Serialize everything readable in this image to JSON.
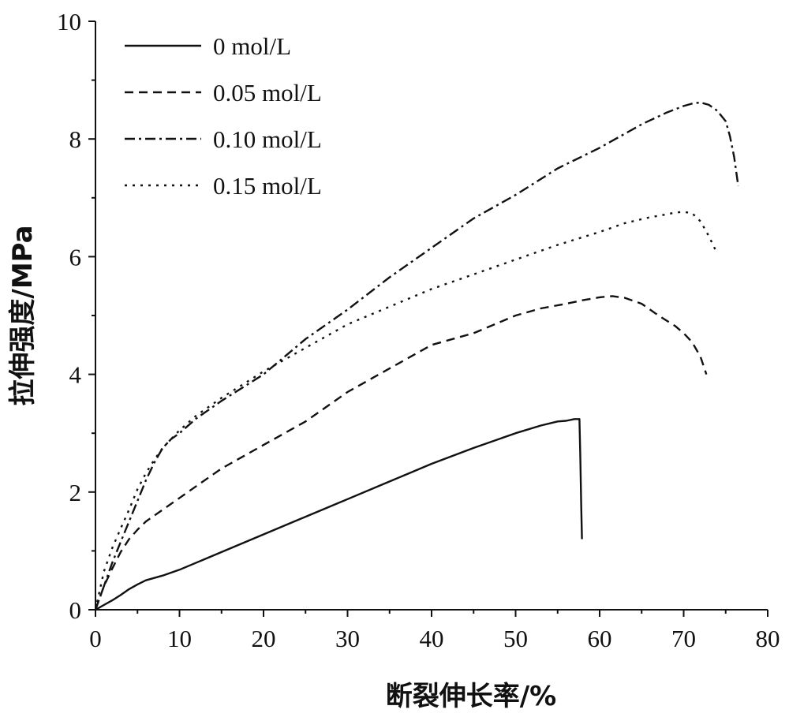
{
  "chart_data": {
    "type": "line",
    "title": "",
    "xlabel": "断裂伸长率/%",
    "ylabel": "拉伸强度/MPa",
    "xlim": [
      0,
      80
    ],
    "ylim": [
      0,
      10
    ],
    "xticks": [
      0,
      10,
      20,
      30,
      40,
      50,
      60,
      70,
      80
    ],
    "yticks": [
      0,
      2,
      4,
      6,
      8,
      10
    ],
    "grid": false,
    "legend_position": "top-left",
    "series": [
      {
        "name": "0 mol/L",
        "style": "solid",
        "x": [
          0,
          1,
          2,
          3,
          4,
          5,
          6,
          8,
          10,
          15,
          20,
          25,
          30,
          35,
          40,
          45,
          50,
          53,
          55,
          56,
          57,
          57.6,
          57.7,
          57.8,
          57.9
        ],
        "y": [
          0,
          0.08,
          0.16,
          0.25,
          0.35,
          0.43,
          0.5,
          0.58,
          0.68,
          0.98,
          1.28,
          1.58,
          1.88,
          2.18,
          2.48,
          2.75,
          3.0,
          3.13,
          3.2,
          3.21,
          3.24,
          3.24,
          2.6,
          1.8,
          1.2
        ]
      },
      {
        "name": "0.05 mol/L",
        "style": "dashed",
        "x": [
          0,
          1,
          2,
          3,
          4,
          5,
          6,
          8,
          10,
          12,
          15,
          20,
          25,
          30,
          35,
          40,
          43,
          45,
          50,
          53,
          56,
          58,
          60,
          61.5,
          63,
          65,
          67,
          69,
          70,
          71,
          72,
          72.7
        ],
        "y": [
          0,
          0.4,
          0.7,
          0.98,
          1.2,
          1.36,
          1.5,
          1.7,
          1.9,
          2.1,
          2.4,
          2.8,
          3.2,
          3.7,
          4.1,
          4.5,
          4.62,
          4.7,
          5.0,
          5.12,
          5.2,
          5.26,
          5.31,
          5.33,
          5.3,
          5.2,
          5.0,
          4.82,
          4.7,
          4.55,
          4.3,
          4.0
        ]
      },
      {
        "name": "0.10 mol/L",
        "style": "dashdot",
        "x": [
          0,
          1,
          2,
          3,
          4,
          5,
          6,
          7,
          8,
          9,
          10,
          12,
          15,
          20,
          25,
          30,
          35,
          40,
          45,
          50,
          55,
          60,
          65,
          68,
          70,
          71,
          72,
          73,
          74,
          75,
          75.5,
          76,
          76.5
        ],
        "y": [
          0,
          0.4,
          0.8,
          1.15,
          1.5,
          1.85,
          2.2,
          2.5,
          2.75,
          2.9,
          3.0,
          3.25,
          3.55,
          4.0,
          4.6,
          5.1,
          5.65,
          6.15,
          6.65,
          7.05,
          7.5,
          7.85,
          8.25,
          8.45,
          8.56,
          8.6,
          8.62,
          8.58,
          8.48,
          8.3,
          8.05,
          7.7,
          7.2
        ]
      },
      {
        "name": "0.15 mol/L",
        "style": "dotted",
        "x": [
          0,
          1,
          2,
          3,
          4,
          5,
          6,
          7,
          8,
          10,
          12,
          15,
          20,
          25,
          30,
          35,
          40,
          45,
          50,
          55,
          60,
          63,
          66,
          68,
          69,
          70,
          71,
          72,
          73,
          74
        ],
        "y": [
          0,
          0.65,
          1.05,
          1.38,
          1.7,
          2.05,
          2.32,
          2.55,
          2.75,
          3.05,
          3.3,
          3.6,
          4.05,
          4.45,
          4.85,
          5.15,
          5.45,
          5.7,
          5.95,
          6.2,
          6.42,
          6.57,
          6.67,
          6.72,
          6.75,
          6.76,
          6.74,
          6.6,
          6.35,
          6.05
        ]
      }
    ]
  }
}
